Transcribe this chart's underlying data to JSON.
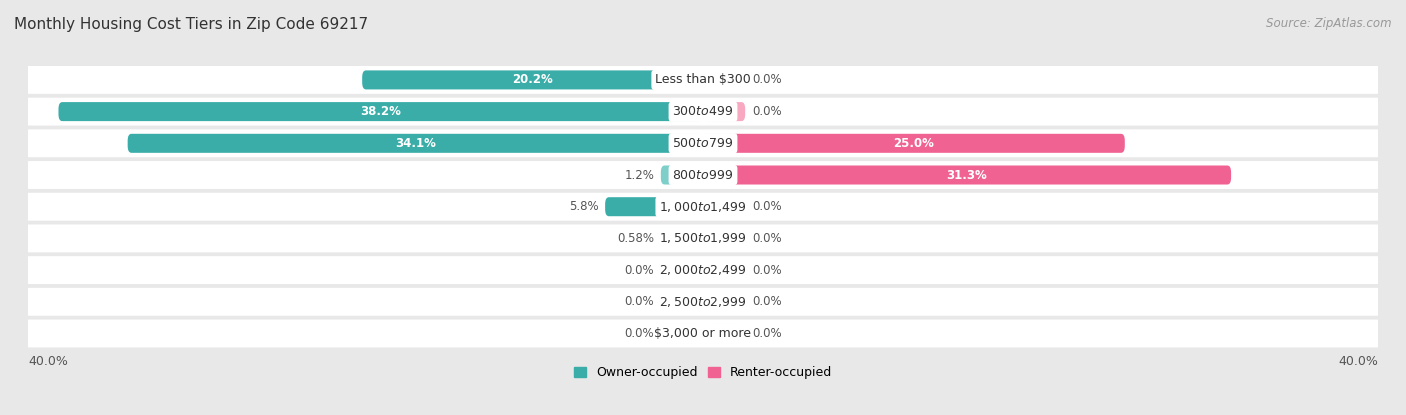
{
  "title": "Monthly Housing Cost Tiers in Zip Code 69217",
  "source": "Source: ZipAtlas.com",
  "categories": [
    "Less than $300",
    "$300 to $499",
    "$500 to $799",
    "$800 to $999",
    "$1,000 to $1,499",
    "$1,500 to $1,999",
    "$2,000 to $2,499",
    "$2,500 to $2,999",
    "$3,000 or more"
  ],
  "owner_values": [
    20.2,
    38.2,
    34.1,
    1.2,
    5.8,
    0.58,
    0.0,
    0.0,
    0.0
  ],
  "renter_values": [
    0.0,
    0.0,
    25.0,
    31.3,
    0.0,
    0.0,
    0.0,
    0.0,
    0.0
  ],
  "owner_label_texts": [
    "20.2%",
    "38.2%",
    "34.1%",
    "1.2%",
    "5.8%",
    "0.58%",
    "0.0%",
    "0.0%",
    "0.0%"
  ],
  "renter_label_texts": [
    "0.0%",
    "0.0%",
    "25.0%",
    "31.3%",
    "0.0%",
    "0.0%",
    "0.0%",
    "0.0%",
    "0.0%"
  ],
  "owner_color_dark": "#3aada8",
  "owner_color_light": "#7ececa",
  "renter_color_dark": "#f06292",
  "renter_color_light": "#f8a8c0",
  "owner_label": "Owner-occupied",
  "renter_label": "Renter-occupied",
  "axis_limit": 40.0,
  "min_bar_val": 2.5,
  "bg_color": "#e8e8e8",
  "row_bg_color": "#f0f0f0",
  "bar_row_bg": "#ffffff",
  "title_fontsize": 11,
  "source_fontsize": 8.5,
  "label_fontsize": 8.5,
  "category_fontsize": 9,
  "legend_fontsize": 9,
  "axis_tick_fontsize": 9
}
